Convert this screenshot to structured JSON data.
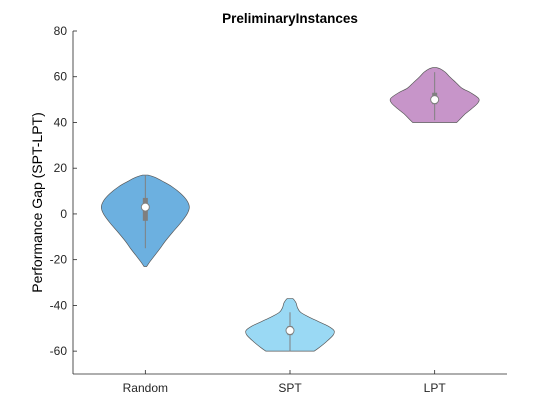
{
  "chart_data": {
    "type": "violin",
    "title": "PreliminaryInstances",
    "xlabel": "",
    "ylabel": "Performance Gap (SPT-LPT)",
    "ylim": [
      -70,
      80
    ],
    "yticks": [
      -60,
      -40,
      -20,
      0,
      20,
      40,
      60,
      80
    ],
    "categories": [
      "Random",
      "SPT",
      "LPT"
    ],
    "grid": false,
    "series": [
      {
        "category": "Random",
        "color": "#6cb0e0",
        "edge_color": "#5a5a5a",
        "median": 3,
        "q1": -3,
        "q3": 7,
        "whisker_low": -15,
        "whisker_high": 17,
        "min": -23,
        "max": 17,
        "density": [
          [
            -23,
            0.03
          ],
          [
            -21,
            0.1
          ],
          [
            -18,
            0.22
          ],
          [
            -15,
            0.34
          ],
          [
            -12,
            0.45
          ],
          [
            -8,
            0.62
          ],
          [
            -4,
            0.8
          ],
          [
            0,
            0.95
          ],
          [
            3,
            1.0
          ],
          [
            6,
            0.94
          ],
          [
            9,
            0.8
          ],
          [
            12,
            0.6
          ],
          [
            14,
            0.42
          ],
          [
            16,
            0.22
          ],
          [
            17,
            0.06
          ]
        ]
      },
      {
        "category": "SPT",
        "color": "#9ad9f4",
        "edge_color": "#5a5a5a",
        "median": -51,
        "q1": -53,
        "q3": -49,
        "whisker_low": -60,
        "whisker_high": -43,
        "min": -60,
        "max": -37,
        "density": [
          [
            -60,
            0.55
          ],
          [
            -58.5,
            0.66
          ],
          [
            -56,
            0.82
          ],
          [
            -53,
            0.98
          ],
          [
            -51,
            1.0
          ],
          [
            -49,
            0.86
          ],
          [
            -47,
            0.64
          ],
          [
            -45,
            0.42
          ],
          [
            -43,
            0.24
          ],
          [
            -41,
            0.17
          ],
          [
            -39,
            0.14
          ],
          [
            -37.5,
            0.09
          ],
          [
            -37,
            0.06
          ]
        ]
      },
      {
        "category": "LPT",
        "color": "#c795c9",
        "edge_color": "#5a5a5a",
        "median": 50,
        "q1": 48,
        "q3": 53,
        "whisker_low": 41,
        "whisker_high": 62,
        "min": 40,
        "max": 64,
        "density": [
          [
            40,
            0.5
          ],
          [
            41.5,
            0.58
          ],
          [
            43.5,
            0.68
          ],
          [
            46,
            0.84
          ],
          [
            48.5,
            0.98
          ],
          [
            50.5,
            1.0
          ],
          [
            53,
            0.82
          ],
          [
            55,
            0.62
          ],
          [
            57.5,
            0.48
          ],
          [
            60,
            0.34
          ],
          [
            62,
            0.24
          ],
          [
            63.5,
            0.12
          ],
          [
            64,
            0.04
          ]
        ]
      }
    ]
  }
}
